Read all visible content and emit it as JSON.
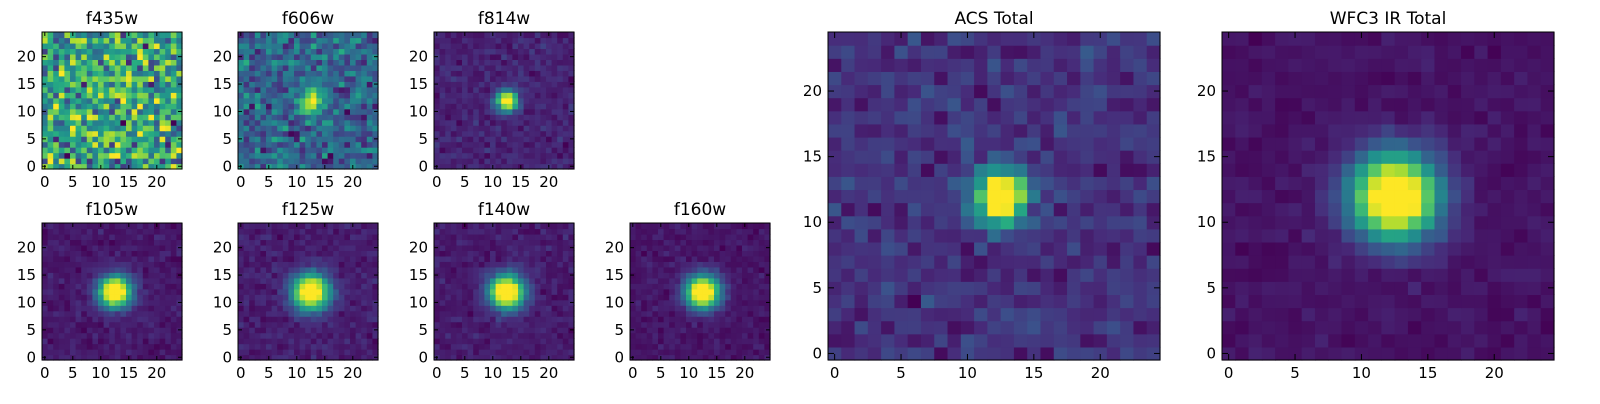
{
  "chart_data": [
    {
      "type": "heatmap",
      "title": "f435w",
      "cmap": "viridis",
      "size": 25,
      "noise": 0.65,
      "peak": 0.03,
      "psf_sigma": 1.6,
      "clip": 0.85,
      "xticks": [
        "0",
        "5",
        "10",
        "15",
        "20"
      ],
      "yticks": [
        "0",
        "5",
        "10",
        "15",
        "20"
      ]
    },
    {
      "type": "heatmap",
      "title": "f606w",
      "cmap": "viridis",
      "size": 25,
      "noise": 0.45,
      "peak": 0.4,
      "psf_sigma": 1.6,
      "clip": 1.0,
      "xticks": [
        "0",
        "5",
        "10",
        "15",
        "20"
      ],
      "yticks": [
        "0",
        "5",
        "10",
        "15",
        "20"
      ]
    },
    {
      "type": "heatmap",
      "title": "f814w",
      "cmap": "viridis",
      "size": 25,
      "noise": 0.2,
      "peak": 1.0,
      "psf_sigma": 1.3,
      "clip": 0.85,
      "xticks": [
        "0",
        "5",
        "10",
        "15",
        "20"
      ],
      "yticks": [
        "0",
        "5",
        "10",
        "15",
        "20"
      ]
    },
    {
      "type": "heatmap",
      "title": "f105w",
      "cmap": "viridis",
      "size": 25,
      "noise": 0.14,
      "peak": 1.0,
      "psf_sigma": 2.0,
      "clip": 0.8,
      "xticks": [
        "0",
        "5",
        "10",
        "15",
        "20"
      ],
      "yticks": [
        "0",
        "5",
        "10",
        "15",
        "20"
      ]
    },
    {
      "type": "heatmap",
      "title": "f125w",
      "cmap": "viridis",
      "size": 25,
      "noise": 0.16,
      "peak": 1.0,
      "psf_sigma": 2.3,
      "clip": 0.8,
      "xticks": [
        "0",
        "5",
        "10",
        "15",
        "20"
      ],
      "yticks": [
        "0",
        "5",
        "10",
        "15",
        "20"
      ]
    },
    {
      "type": "heatmap",
      "title": "f140w",
      "cmap": "viridis",
      "size": 25,
      "noise": 0.15,
      "peak": 1.0,
      "psf_sigma": 2.2,
      "clip": 0.8,
      "xticks": [
        "0",
        "5",
        "10",
        "15",
        "20"
      ],
      "yticks": [
        "0",
        "5",
        "10",
        "15",
        "20"
      ]
    },
    {
      "type": "heatmap",
      "title": "f160w",
      "cmap": "viridis",
      "size": 25,
      "noise": 0.12,
      "peak": 1.0,
      "psf_sigma": 2.1,
      "clip": 0.8,
      "xticks": [
        "0",
        "5",
        "10",
        "15",
        "20"
      ],
      "yticks": [
        "0",
        "5",
        "10",
        "15",
        "20"
      ]
    },
    {
      "type": "heatmap",
      "title": "ACS Total",
      "cmap": "viridis",
      "size": 25,
      "noise": 0.3,
      "peak": 1.0,
      "psf_sigma": 1.4,
      "clip": 0.8,
      "xticks": [
        "0",
        "5",
        "10",
        "15",
        "20"
      ],
      "yticks": [
        "0",
        "5",
        "10",
        "15",
        "20"
      ]
    },
    {
      "type": "heatmap",
      "title": "WFC3 IR Total",
      "cmap": "viridis",
      "size": 25,
      "noise": 0.1,
      "peak": 1.0,
      "psf_sigma": 2.3,
      "clip": 0.8,
      "xticks": [
        "0",
        "5",
        "10",
        "15",
        "20"
      ],
      "yticks": [
        "0",
        "5",
        "10",
        "15",
        "20"
      ]
    }
  ],
  "source_position": {
    "x": 12.5,
    "y": 12.0
  }
}
